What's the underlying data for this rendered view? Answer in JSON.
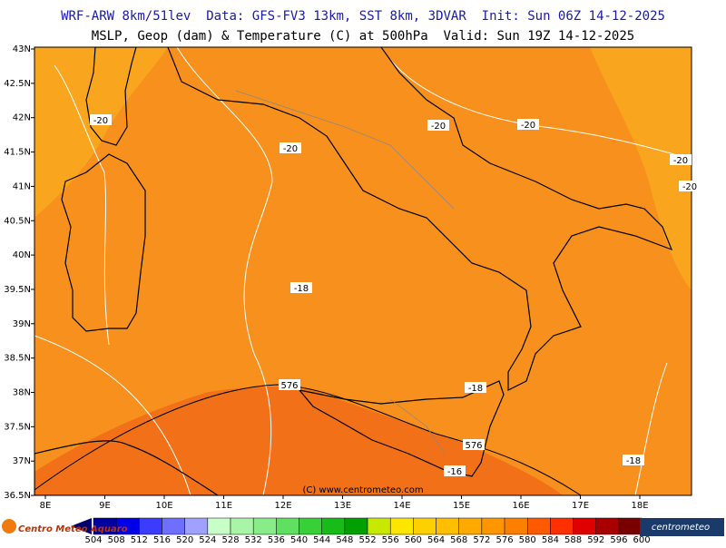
{
  "header": {
    "line1": "WRF-ARW 8km/51lev  Data: GFS-FV3 13km, SST 8km, 3DVAR  Init: Sun 06Z 14-12-2025",
    "line2": "MSLP, Geop (dam) & Temperature (C) at 500hPa  Valid: Sun 19Z 14-12-2025"
  },
  "map": {
    "lat_labels": [
      "43N",
      "42.5N",
      "42N",
      "41.5N",
      "41N",
      "40.5N",
      "40N",
      "39.5N",
      "39N",
      "38.5N",
      "38N",
      "37.5N",
      "37N",
      "36.5N"
    ],
    "lon_labels": [
      "8E",
      "9E",
      "10E",
      "11E",
      "12E",
      "13E",
      "14E",
      "15E",
      "16E",
      "17E",
      "18E"
    ],
    "contour_labels": [
      "-20",
      "-20",
      "-20",
      "-20",
      "-20",
      "-20",
      "-18",
      "-18",
      "-18",
      "-16",
      "576",
      "576"
    ],
    "credit": "(C) www.centrometeo.com"
  },
  "colorbar": {
    "values": [
      "504",
      "508",
      "512",
      "516",
      "520",
      "524",
      "528",
      "532",
      "536",
      "540",
      "544",
      "548",
      "552",
      "556",
      "560",
      "564",
      "568",
      "572",
      "576",
      "580",
      "584",
      "588",
      "592",
      "596",
      "600"
    ],
    "colors": [
      "#0000a0",
      "#0000e8",
      "#3c3cff",
      "#6e6eff",
      "#a0a0ff",
      "#c8ffc8",
      "#a8f5a8",
      "#88ec88",
      "#60e060",
      "#38d038",
      "#18bc18",
      "#00a000",
      "#c8e800",
      "#ffe600",
      "#ffd000",
      "#ffbe00",
      "#ffaa00",
      "#ff9600",
      "#ff8000",
      "#ff5a00",
      "#ff3000",
      "#e00000",
      "#a80000",
      "#780000"
    ]
  },
  "logos": {
    "left": "Centro Meteo Aquaro",
    "right": "centrometeo"
  }
}
